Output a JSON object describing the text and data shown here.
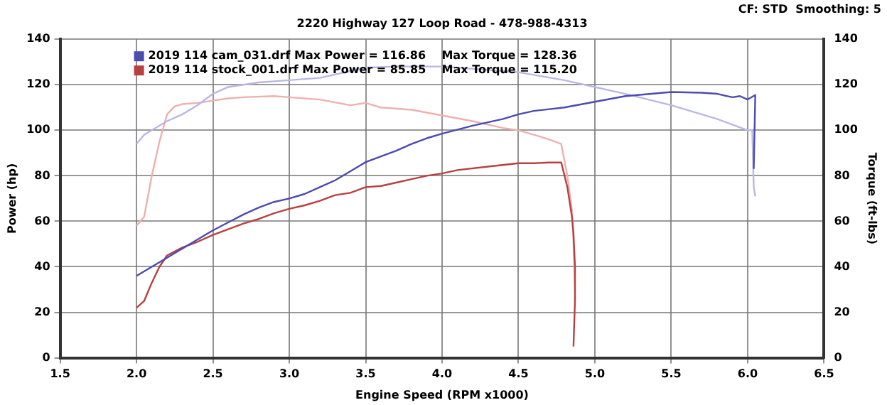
{
  "chart_data": {
    "type": "line",
    "title": "2220 Highway 127 Loop Road - 478-988-4313",
    "annotations": [
      "CF: STD  Smoothing: 5"
    ],
    "xlabel": "Engine Speed (RPM x1000)",
    "ylabel": "Power (hp)",
    "y2label": "Torque (ft-lbs)",
    "xlim": [
      1.5,
      6.5
    ],
    "xticks": [
      {
        "value": 1.5,
        "label": "1.5"
      },
      {
        "value": 2,
        "label": "2.0"
      },
      {
        "value": 2.5,
        "label": "2.5"
      },
      {
        "value": 3,
        "label": "3.0"
      },
      {
        "value": 3.5,
        "label": "3.5"
      },
      {
        "value": 4,
        "label": "4.0"
      },
      {
        "value": 4.5,
        "label": "4.5"
      },
      {
        "value": 5,
        "label": "5.0"
      },
      {
        "value": 5.5,
        "label": "5.5"
      },
      {
        "value": 6,
        "label": "6.0"
      },
      {
        "value": 6.5,
        "label": "6.5"
      }
    ],
    "ylim": [
      0,
      140
    ],
    "yticks": [
      0,
      20,
      40,
      60,
      80,
      100,
      120,
      140
    ],
    "y2lim": [
      0,
      140
    ],
    "y2ticks": [
      0,
      20,
      40,
      60,
      80,
      100,
      120,
      140
    ],
    "grid": true,
    "legend": "top left",
    "marker": "none",
    "line_style": "solid",
    "series": [
      {
        "name": "2019 114 cam_031.drf Max Power = 116.86    Max Torque = 128.36",
        "color": "#4b4bb0",
        "x": [
          2.0,
          2.1,
          2.2,
          2.3,
          2.4,
          2.5,
          2.6,
          2.7,
          2.8,
          2.9,
          3.0,
          3.1,
          3.2,
          3.3,
          3.4,
          3.5,
          3.6,
          3.7,
          3.8,
          3.9,
          4.0,
          4.2,
          4.4,
          4.5,
          4.6,
          4.8,
          5.0,
          5.2,
          5.5,
          5.7,
          5.8,
          5.9,
          5.95,
          6.0,
          6.05,
          6.04
        ],
        "values": [
          36,
          40,
          44,
          48,
          52,
          56,
          59.5,
          63,
          66,
          68.5,
          70,
          72,
          75,
          78,
          82,
          86,
          88.5,
          91,
          94,
          96.5,
          98.5,
          102,
          105,
          107,
          108.5,
          110,
          112.5,
          115,
          116.8,
          116.5,
          116,
          114.5,
          115,
          113.5,
          115.5,
          83
        ]
      },
      {
        "axis": "y2",
        "color": "#b8b8e6",
        "x": [
          2.0,
          2.05,
          2.1,
          2.2,
          2.3,
          2.4,
          2.5,
          2.6,
          2.7,
          2.8,
          3.0,
          3.2,
          3.4,
          3.5,
          3.7,
          4.0,
          4.5,
          4.8,
          5.0,
          5.2,
          5.5,
          5.8,
          6.0,
          6.03,
          6.04,
          6.05
        ],
        "values": [
          94,
          98,
          100,
          104,
          107,
          111,
          116,
          119,
          120,
          121,
          122,
          123,
          126,
          127.5,
          128,
          128,
          125.5,
          122,
          119,
          116,
          111,
          105,
          100,
          100,
          75,
          71
        ]
      },
      {
        "name": "2019 114 stock_001.drf Max Power = 85.85    Max Torque = 115.20",
        "color": "#b84040",
        "x": [
          2.0,
          2.05,
          2.1,
          2.15,
          2.2,
          2.3,
          2.4,
          2.5,
          2.6,
          2.7,
          2.8,
          2.9,
          3.0,
          3.1,
          3.2,
          3.3,
          3.4,
          3.5,
          3.6,
          3.7,
          3.8,
          3.9,
          4.0,
          4.1,
          4.3,
          4.5,
          4.6,
          4.7,
          4.78,
          4.82,
          4.85,
          4.86,
          4.87,
          4.87,
          4.86
        ],
        "values": [
          22,
          25,
          33,
          40,
          45,
          48.5,
          51,
          54,
          56.5,
          59,
          61,
          63.5,
          65.5,
          67,
          69,
          71.5,
          72.5,
          75,
          75.5,
          77,
          78.5,
          80,
          81,
          82.5,
          84,
          85.5,
          85.5,
          85.8,
          85.8,
          75,
          62,
          55,
          40,
          25,
          5
        ]
      },
      {
        "axis": "y2",
        "color": "#eeb0b0",
        "x": [
          2.0,
          2.05,
          2.1,
          2.15,
          2.2,
          2.25,
          2.3,
          2.4,
          2.5,
          2.6,
          2.7,
          2.9,
          3.0,
          3.2,
          3.4,
          3.5,
          3.6,
          3.8,
          4.0,
          4.2,
          4.4,
          4.5,
          4.6,
          4.7,
          4.78,
          4.82,
          4.85,
          4.86,
          4.87
        ],
        "values": [
          58,
          62,
          80,
          95,
          107,
          110.5,
          111.5,
          112,
          113,
          114,
          114.5,
          115,
          114.5,
          113.5,
          111,
          112,
          110,
          109,
          106.5,
          104,
          101,
          100,
          98,
          96,
          94,
          80,
          65,
          50,
          30
        ]
      }
    ]
  }
}
